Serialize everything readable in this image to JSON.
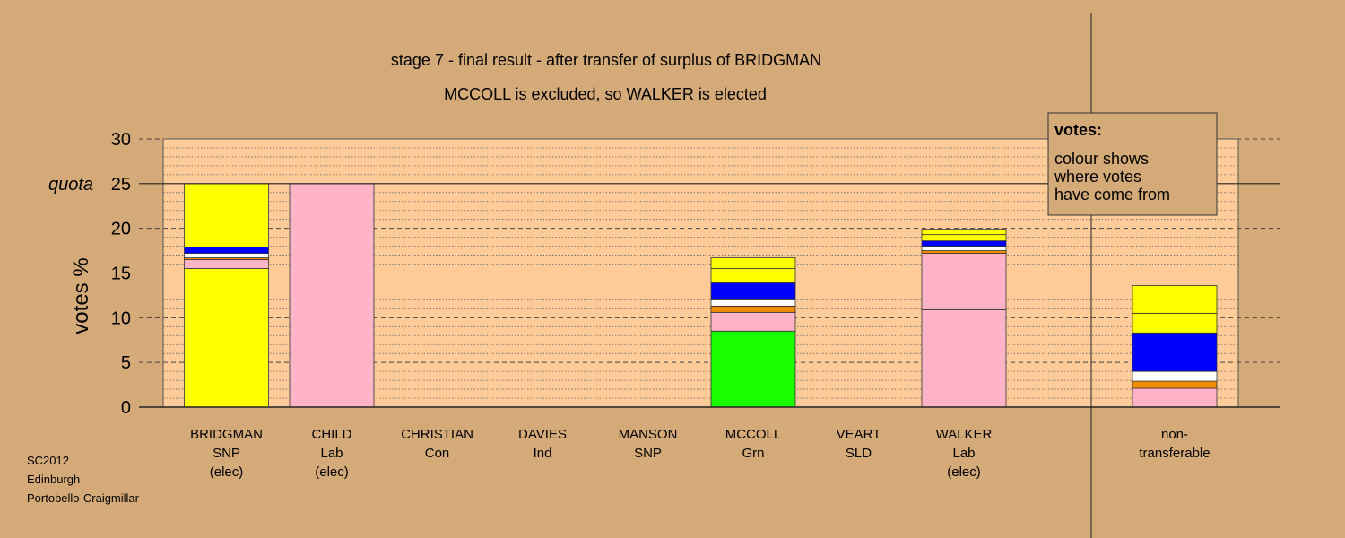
{
  "chart_data": {
    "type": "bar",
    "stacked": true,
    "title": "stage 7 - final result - after transfer of surplus of BRIDGMAN",
    "subtitle": "MCCOLL is excluded, so WALKER is elected",
    "ylabel": "votes %",
    "quota_label": "quota",
    "quota": 25,
    "ylim": [
      0,
      30
    ],
    "yticks": [
      0,
      5,
      10,
      15,
      20,
      25,
      30
    ],
    "grid": true,
    "legend": {
      "position": "top-right",
      "title": "votes:",
      "lines": [
        "colour shows",
        "where votes",
        "have come from"
      ]
    },
    "footer": [
      "SC2012",
      "Edinburgh",
      "Portobello-Craigmillar"
    ],
    "colors": {
      "SNP": "#ffff00",
      "Lab": "#ffb3c6",
      "Con": "#0000ff",
      "Ind": "#ffffff",
      "SLD": "#f08c00",
      "Grn": "#1aff00",
      "plot_bg": "#ffcc99",
      "page_bg": "#d4aa78"
    },
    "categories": [
      {
        "lines": [
          "BRIDGMAN",
          "SNP",
          "(elec)"
        ],
        "segments": [
          {
            "party": "SNP",
            "value": 15.5
          },
          {
            "party": "Lab",
            "value": 1.0
          },
          {
            "party": "SLD",
            "value": 0.2
          },
          {
            "party": "Ind",
            "value": 0.5
          },
          {
            "party": "Con",
            "value": 0.7
          },
          {
            "party": "SNP",
            "value": 7.1
          }
        ]
      },
      {
        "lines": [
          "CHILD",
          "Lab",
          "(elec)"
        ],
        "segments": [
          {
            "party": "Lab",
            "value": 25.0
          }
        ]
      },
      {
        "lines": [
          "CHRISTIAN",
          "Con"
        ],
        "segments": []
      },
      {
        "lines": [
          "DAVIES",
          "Ind"
        ],
        "segments": []
      },
      {
        "lines": [
          "MANSON",
          "SNP"
        ],
        "segments": []
      },
      {
        "lines": [
          "MCCOLL",
          "Grn"
        ],
        "segments": [
          {
            "party": "Grn",
            "value": 8.5
          },
          {
            "party": "Lab",
            "value": 2.1
          },
          {
            "party": "SLD",
            "value": 0.7
          },
          {
            "party": "Ind",
            "value": 0.7
          },
          {
            "party": "Con",
            "value": 1.9
          },
          {
            "party": "SNP",
            "value": 1.6
          },
          {
            "party": "SNP",
            "value": 1.2
          }
        ]
      },
      {
        "lines": [
          "VEART",
          "SLD"
        ],
        "segments": []
      },
      {
        "lines": [
          "WALKER",
          "Lab",
          "(elec)"
        ],
        "segments": [
          {
            "party": "Lab",
            "value": 10.9
          },
          {
            "party": "Lab",
            "value": 6.3
          },
          {
            "party": "SLD",
            "value": 0.3
          },
          {
            "party": "Ind",
            "value": 0.5
          },
          {
            "party": "Con",
            "value": 0.6
          },
          {
            "party": "SNP",
            "value": 0.7
          },
          {
            "party": "SNP",
            "value": 0.6
          }
        ]
      }
    ],
    "nontransferable": {
      "lines": [
        "non-",
        "transferable"
      ],
      "segments": [
        {
          "party": "Lab",
          "value": 2.1
        },
        {
          "party": "SLD",
          "value": 0.8
        },
        {
          "party": "Ind",
          "value": 1.1
        },
        {
          "party": "Con",
          "value": 4.3
        },
        {
          "party": "SNP",
          "value": 2.2
        },
        {
          "party": "SNP",
          "value": 3.1
        }
      ]
    }
  }
}
